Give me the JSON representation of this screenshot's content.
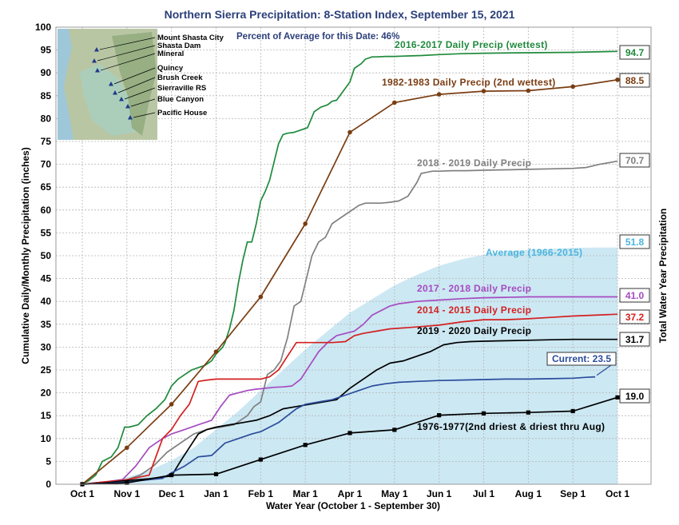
{
  "chart_data": {
    "type": "line",
    "title": "Northern Sierra Precipitation: 8-Station Index, September 15, 2021",
    "subtitle": "Percent of Average for this Date: 46%",
    "xlabel": "Water Year (October 1 - September 30)",
    "ylabel_left": "Cumulative Daily/Monthly Precipitation (inches)",
    "ylabel_right": "Total Water Year Precipitation",
    "x_ticks": [
      "Oct 1",
      "Nov 1",
      "Dec 1",
      "Jan 1",
      "Feb 1",
      "Mar 1",
      "Apr 1",
      "May 1",
      "Jun 1",
      "Jul 1",
      "Aug 1",
      "Sep 1",
      "Oct 1"
    ],
    "ylim": [
      0,
      100
    ],
    "y_ticks": [
      0,
      5,
      10,
      15,
      20,
      25,
      30,
      35,
      40,
      45,
      50,
      55,
      60,
      65,
      70,
      75,
      80,
      85,
      90,
      95,
      100
    ],
    "grid": true,
    "map_stations": [
      "Mount Shasta City",
      "Shasta Dam",
      "Mineral",
      "Quincy",
      "Brush Creek",
      "Sierraville RS",
      "Blue Canyon",
      "Pacific House"
    ],
    "average": {
      "name": "Average (1966-2015)",
      "total_label": "51.8",
      "color": "#cce8f3",
      "label_color": "#4bb5dd",
      "x": [
        0,
        0.5,
        1,
        1.5,
        2,
        2.5,
        3,
        3.5,
        4,
        4.5,
        5,
        5.5,
        6,
        6.5,
        7,
        7.5,
        8,
        8.5,
        9,
        9.5,
        10,
        10.5,
        11,
        11.5,
        12
      ],
      "values": [
        0,
        0.6,
        1.5,
        3.0,
        5.2,
        8.0,
        12.0,
        16.0,
        20.5,
        25.0,
        29.5,
        33.5,
        37.5,
        40.5,
        43.5,
        45.8,
        47.8,
        49.2,
        50.2,
        50.9,
        51.3,
        51.5,
        51.7,
        51.8,
        51.8
      ]
    },
    "series": [
      {
        "name": "2016-2017 Daily Precip (wettest)",
        "total_label": "94.7",
        "color": "#1f8a3c",
        "x": [
          0,
          0.15,
          0.3,
          0.45,
          0.65,
          0.8,
          0.95,
          1.05,
          1.25,
          1.45,
          1.65,
          1.85,
          2.0,
          2.15,
          2.3,
          2.45,
          2.6,
          2.75,
          2.9,
          3.0,
          3.15,
          3.2,
          3.3,
          3.4,
          3.5,
          3.6,
          3.7,
          3.8,
          3.9,
          4.0,
          4.1,
          4.2,
          4.3,
          4.4,
          4.5,
          4.6,
          4.75,
          4.9,
          5.05,
          5.2,
          5.35,
          5.5,
          5.6,
          5.7,
          5.85,
          6.0,
          6.1,
          6.25,
          6.35,
          6.5,
          6.6,
          6.8,
          7.0,
          7.3,
          7.6,
          8.0,
          8.5,
          9.0,
          10.0,
          11.0,
          12.0
        ],
        "values": [
          0,
          0.8,
          2.0,
          5.0,
          6.0,
          8.0,
          12.5,
          12.5,
          13.0,
          15.0,
          16.5,
          18.5,
          21.5,
          23.0,
          24.0,
          25.0,
          25.5,
          26.0,
          27.0,
          28.5,
          30.0,
          31.0,
          34.0,
          38.0,
          44.0,
          49.0,
          53.0,
          53.0,
          57.0,
          62.0,
          64.0,
          66.5,
          70.5,
          74.5,
          76.5,
          76.8,
          77.0,
          77.5,
          78.0,
          81.5,
          82.5,
          83.0,
          83.8,
          84.0,
          86.0,
          88.0,
          91.0,
          92.0,
          93.0,
          93.5,
          93.5,
          93.6,
          93.6,
          93.7,
          93.8,
          94.0,
          94.2,
          94.3,
          94.4,
          94.5,
          94.7
        ]
      },
      {
        "name": "1982-1983 Daily Precip (2nd wettest)",
        "total_label": "88.5",
        "color": "#7a3d12",
        "marker": "circle",
        "x": [
          0,
          1,
          2,
          3,
          4,
          5,
          6,
          7,
          8,
          9,
          10,
          11,
          12
        ],
        "values": [
          0,
          8.0,
          17.5,
          29.0,
          41.0,
          57.0,
          77.0,
          83.5,
          85.3,
          86.0,
          86.1,
          87.0,
          88.5
        ]
      },
      {
        "name": "2018 - 2019 Daily Precip",
        "total_label": "70.7",
        "color": "#808080",
        "x": [
          0,
          0.5,
          1.0,
          1.3,
          1.6,
          1.9,
          2.2,
          2.5,
          2.8,
          3.1,
          3.4,
          3.7,
          3.85,
          4.0,
          4.15,
          4.3,
          4.45,
          4.6,
          4.75,
          4.9,
          5.05,
          5.15,
          5.3,
          5.45,
          5.6,
          5.75,
          5.9,
          6.05,
          6.2,
          6.35,
          6.5,
          6.7,
          6.9,
          7.1,
          7.3,
          7.5,
          7.6,
          7.7,
          7.85,
          8.0,
          8.3,
          8.6,
          9.0,
          9.5,
          10.0,
          10.5,
          11.0,
          11.3,
          11.6,
          11.9,
          12.0
        ],
        "values": [
          0,
          0.5,
          1.0,
          2.0,
          4.0,
          7.0,
          9.0,
          11.0,
          12.0,
          12.5,
          13.0,
          15.0,
          17.0,
          18.0,
          24.0,
          25.0,
          27.0,
          32.0,
          39.0,
          40.0,
          46.0,
          50.0,
          53.0,
          54.0,
          57.0,
          58.0,
          59.0,
          60.0,
          61.0,
          61.5,
          61.5,
          61.5,
          61.7,
          62.0,
          63.0,
          66.0,
          68.0,
          68.2,
          68.5,
          68.5,
          68.6,
          68.6,
          68.7,
          68.8,
          68.9,
          69.0,
          69.1,
          69.3,
          70.0,
          70.5,
          70.7
        ]
      },
      {
        "name": "2017 - 2018 Daily Precip",
        "total_label": "41.0",
        "color": "#a54bc0",
        "x": [
          0,
          0.5,
          0.9,
          1.2,
          1.5,
          1.8,
          2.0,
          2.3,
          2.6,
          2.9,
          3.1,
          3.3,
          3.5,
          3.7,
          3.9,
          4.1,
          4.3,
          4.5,
          4.7,
          4.9,
          5.1,
          5.3,
          5.5,
          5.7,
          5.9,
          6.1,
          6.3,
          6.5,
          6.7,
          6.9,
          7.1,
          7.5,
          8.0,
          8.5,
          9.0,
          9.5,
          10.0,
          11.0,
          12.0
        ],
        "values": [
          0,
          0.5,
          1.0,
          4.0,
          8.0,
          10.0,
          11.0,
          12.0,
          13.0,
          14.0,
          17.0,
          19.5,
          20.0,
          20.5,
          20.8,
          21.0,
          21.2,
          21.3,
          21.5,
          23.0,
          26.0,
          29.0,
          31.0,
          32.5,
          33.0,
          33.5,
          35.0,
          37.0,
          38.0,
          39.0,
          39.5,
          40.0,
          40.3,
          40.6,
          40.8,
          40.9,
          41.0,
          41.0,
          41.0
        ]
      },
      {
        "name": "2014 - 2015 Daily Precip",
        "total_label": "37.2",
        "color": "#d42020",
        "x": [
          0,
          0.5,
          1.0,
          1.5,
          1.8,
          2.0,
          2.2,
          2.4,
          2.6,
          2.8,
          3.0,
          3.2,
          3.5,
          3.8,
          4.0,
          4.2,
          4.4,
          4.6,
          4.8,
          5.0,
          5.3,
          5.6,
          5.9,
          6.1,
          6.3,
          6.6,
          6.9,
          7.2,
          7.6,
          8.0,
          8.5,
          9.0,
          9.5,
          10.0,
          10.5,
          11.0,
          11.5,
          12.0
        ],
        "values": [
          0,
          0.5,
          1.0,
          2.0,
          10.0,
          12.0,
          15.0,
          17.5,
          22.5,
          22.8,
          23.0,
          23.0,
          23.0,
          23.0,
          23.0,
          23.5,
          25.0,
          28.0,
          31.0,
          31.0,
          31.0,
          31.0,
          31.2,
          32.5,
          33.0,
          33.5,
          34.0,
          34.2,
          34.5,
          34.8,
          35.5,
          36.0,
          36.0,
          36.2,
          36.5,
          36.8,
          37.0,
          37.2
        ]
      },
      {
        "name": "2019 - 2020 Daily Precip",
        "total_label": "31.7",
        "color": "#000000",
        "x": [
          0,
          0.5,
          1.0,
          1.5,
          2.0,
          2.2,
          2.4,
          2.6,
          2.8,
          3.0,
          3.3,
          3.6,
          3.9,
          4.2,
          4.5,
          4.8,
          5.1,
          5.4,
          5.7,
          6.0,
          6.3,
          6.6,
          6.9,
          7.2,
          7.5,
          7.8,
          8.1,
          8.4,
          8.7,
          9.0,
          9.5,
          10.0,
          10.5,
          11.0,
          11.5,
          12.0
        ],
        "values": [
          0,
          0.3,
          0.8,
          1.2,
          1.8,
          5.0,
          8.0,
          11.0,
          12.0,
          12.5,
          13.0,
          13.5,
          14.0,
          15.0,
          16.5,
          17.0,
          17.5,
          18.0,
          18.5,
          21.0,
          23.0,
          25.0,
          26.5,
          27.0,
          28.0,
          29.0,
          30.5,
          31.0,
          31.2,
          31.3,
          31.4,
          31.5,
          31.6,
          31.7,
          31.7,
          31.7
        ]
      },
      {
        "name": "Current",
        "callout": "Current: 23.5",
        "color": "#2b4c9b",
        "x": [
          0,
          0.5,
          1.0,
          1.5,
          1.8,
          2.0,
          2.3,
          2.6,
          2.9,
          3.2,
          3.5,
          3.8,
          4.0,
          4.2,
          4.4,
          4.6,
          4.8,
          5.0,
          5.3,
          5.6,
          5.9,
          6.2,
          6.5,
          6.8,
          7.1,
          7.5,
          8.0,
          8.5,
          9.0,
          9.5,
          10.0,
          10.5,
          11.0,
          11.3,
          11.5
        ],
        "values": [
          0,
          0.2,
          0.5,
          1.0,
          1.3,
          2.5,
          4.0,
          6.0,
          6.3,
          9.0,
          10.0,
          11.0,
          11.5,
          12.5,
          13.5,
          15.0,
          16.5,
          17.5,
          18.0,
          18.5,
          19.5,
          20.5,
          21.5,
          22.0,
          22.3,
          22.5,
          22.7,
          22.8,
          22.9,
          23.0,
          23.0,
          23.1,
          23.2,
          23.4,
          23.5
        ]
      },
      {
        "name": "1976-1977(2nd driest & driest thru Aug)",
        "total_label": "19.0",
        "color": "#000000",
        "marker": "square",
        "x": [
          0,
          1,
          2,
          3,
          4,
          5,
          6,
          7,
          8,
          9,
          10,
          11,
          12
        ],
        "values": [
          0,
          0.3,
          2.0,
          2.2,
          5.4,
          8.6,
          11.2,
          11.9,
          15.1,
          15.5,
          15.7,
          16.0,
          19.0
        ]
      }
    ]
  }
}
